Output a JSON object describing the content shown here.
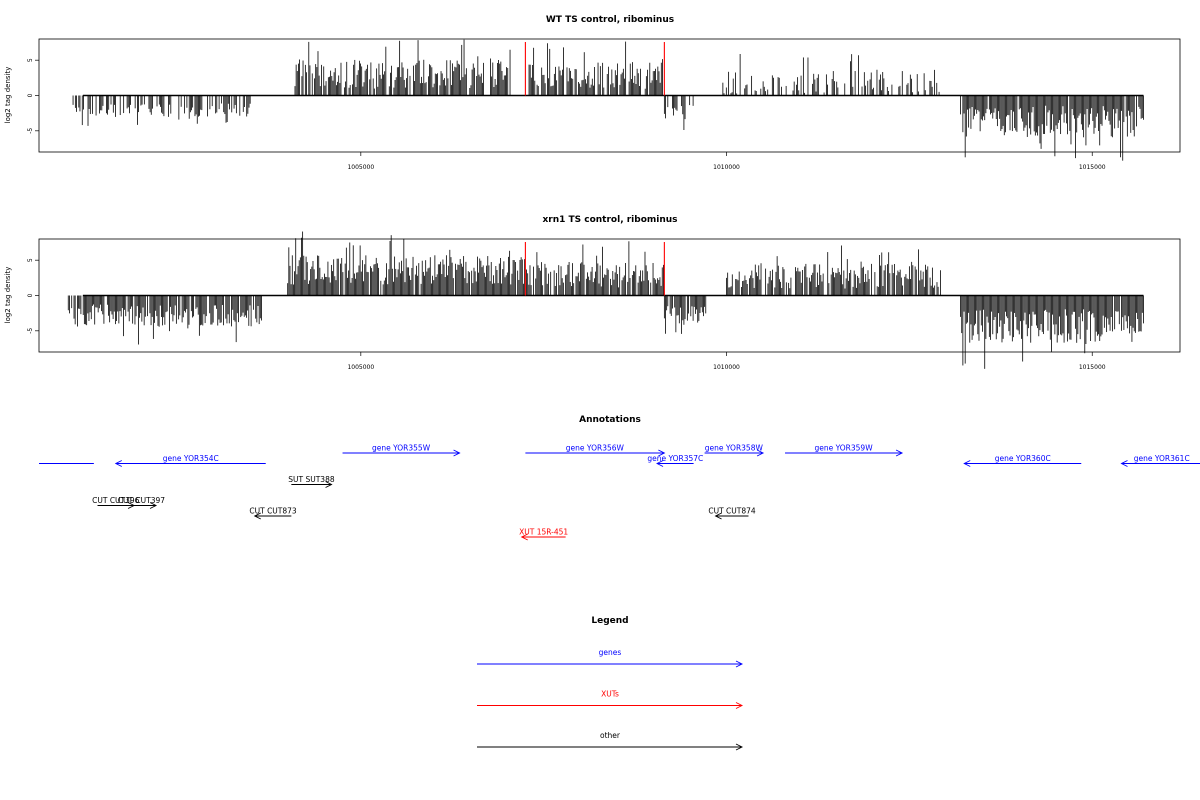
{
  "chart_data": [
    {
      "type": "bar",
      "title": "WT TS control, ribominus",
      "ylabel": "log2 tag density",
      "xlabel": "",
      "xlim": [
        1000600,
        1016200
      ],
      "ylim": [
        -8,
        8
      ],
      "x_ticks": [
        1005000,
        1010000,
        1015000
      ],
      "x_tick_labels": [
        "1005000",
        "1010000",
        "1015000"
      ],
      "y_ticks": [
        -5,
        0,
        5
      ],
      "y_tick_labels": [
        "-5",
        "0",
        "5"
      ],
      "baseline": {
        "from": 1001200,
        "to": 1015700,
        "value": 0
      },
      "markers": [
        1007250,
        1009150
      ],
      "marker_color": "#ff0000",
      "segments": [
        {
          "from": 1001050,
          "to": 1003500,
          "sign": -1,
          "mean": 1.8,
          "amp": 1.2,
          "density": 0.55,
          "seed": 11
        },
        {
          "from": 1004100,
          "to": 1007050,
          "sign": 1,
          "mean": 2.4,
          "amp": 2.6,
          "density": 0.85,
          "seed": 12
        },
        {
          "from": 1007300,
          "to": 1009150,
          "sign": 1,
          "mean": 2.3,
          "amp": 2.4,
          "density": 0.8,
          "seed": 13
        },
        {
          "from": 1009150,
          "to": 1009550,
          "sign": -1,
          "mean": 1.8,
          "amp": 1.5,
          "density": 0.6,
          "seed": 14
        },
        {
          "from": 1009950,
          "to": 1012950,
          "sign": 1,
          "mean": 1.4,
          "amp": 2.0,
          "density": 0.5,
          "seed": 15
        },
        {
          "from": 1013200,
          "to": 1015700,
          "sign": -1,
          "mean": 3.0,
          "amp": 2.8,
          "density": 0.95,
          "seed": 16
        }
      ]
    },
    {
      "type": "bar",
      "title": "xrn1 TS control, ribominus",
      "ylabel": "log2 tag density",
      "xlabel": "",
      "xlim": [
        1000600,
        1016200
      ],
      "ylim": [
        -8,
        8
      ],
      "x_ticks": [
        1005000,
        1010000,
        1015000
      ],
      "x_tick_labels": [
        "1005000",
        "1010000",
        "1015000"
      ],
      "y_ticks": [
        -5,
        0,
        5
      ],
      "y_tick_labels": [
        "-5",
        "0",
        "5"
      ],
      "baseline": {
        "from": 1001200,
        "to": 1015700,
        "value": 0
      },
      "markers": [
        1007250,
        1009150
      ],
      "marker_color": "#ff0000",
      "segments": [
        {
          "from": 1001000,
          "to": 1003650,
          "sign": -1,
          "mean": 2.4,
          "amp": 2.0,
          "density": 0.9,
          "seed": 21
        },
        {
          "from": 1004000,
          "to": 1007250,
          "sign": 1,
          "mean": 3.0,
          "amp": 2.6,
          "density": 0.95,
          "seed": 22
        },
        {
          "from": 1007250,
          "to": 1009150,
          "sign": 1,
          "mean": 2.4,
          "amp": 2.4,
          "density": 0.85,
          "seed": 23
        },
        {
          "from": 1009150,
          "to": 1009750,
          "sign": -1,
          "mean": 2.4,
          "amp": 1.8,
          "density": 0.85,
          "seed": 24
        },
        {
          "from": 1010000,
          "to": 1012950,
          "sign": 1,
          "mean": 2.2,
          "amp": 2.2,
          "density": 0.85,
          "seed": 25
        },
        {
          "from": 1013200,
          "to": 1015700,
          "sign": -1,
          "mean": 3.6,
          "amp": 3.0,
          "density": 0.98,
          "seed": 26
        }
      ]
    }
  ],
  "annotations": {
    "title": "Annotations",
    "items": [
      {
        "label": "",
        "from": 1000600,
        "to": 1001350,
        "dir": "none",
        "color": "#0000ff",
        "row": 1
      },
      {
        "label": "gene YOR354C",
        "from": 1001650,
        "to": 1003700,
        "dir": "left",
        "color": "#0000ff",
        "row": 1
      },
      {
        "label": "gene YOR355W",
        "from": 1004750,
        "to": 1006350,
        "dir": "right",
        "color": "#0000ff",
        "row": 0
      },
      {
        "label": "gene YOR356W",
        "from": 1007250,
        "to": 1009150,
        "dir": "right",
        "color": "#0000ff",
        "row": 0
      },
      {
        "label": "gene YOR357C",
        "from": 1009050,
        "to": 1009550,
        "dir": "left",
        "color": "#0000ff",
        "row": 1
      },
      {
        "label": "gene YOR358W",
        "from": 1009700,
        "to": 1010500,
        "dir": "right",
        "color": "#0000ff",
        "row": 0
      },
      {
        "label": "gene YOR359W",
        "from": 1010800,
        "to": 1012400,
        "dir": "right",
        "color": "#0000ff",
        "row": 0
      },
      {
        "label": "gene YOR360C",
        "from": 1013250,
        "to": 1014850,
        "dir": "left",
        "color": "#0000ff",
        "row": 1
      },
      {
        "label": "gene YOR361C",
        "from": 1015400,
        "to": 1016500,
        "dir": "left",
        "color": "#0000ff",
        "row": 1
      },
      {
        "label": "SUT SUT388",
        "from": 1004050,
        "to": 1004600,
        "dir": "right",
        "color": "#000000",
        "row": 3
      },
      {
        "label": "CUT CUT396",
        "from": 1001400,
        "to": 1001900,
        "dir": "right",
        "color": "#000000",
        "row": 5
      },
      {
        "label": "CUT CUT397",
        "from": 1001800,
        "to": 1002200,
        "dir": "right",
        "color": "#000000",
        "row": 5
      },
      {
        "label": "CUT CUT873",
        "from": 1003550,
        "to": 1004050,
        "dir": "left",
        "color": "#000000",
        "row": 6
      },
      {
        "label": "CUT CUT874",
        "from": 1009850,
        "to": 1010300,
        "dir": "left",
        "color": "#000000",
        "row": 6
      },
      {
        "label": "XUT 15R-451",
        "from": 1007200,
        "to": 1007800,
        "dir": "left",
        "color": "#ff0000",
        "row": 8
      }
    ]
  },
  "legend": {
    "title": "Legend",
    "items": [
      {
        "label": "genes",
        "color": "#0000ff"
      },
      {
        "label": "XUTs",
        "color": "#ff0000"
      },
      {
        "label": "other",
        "color": "#000000"
      }
    ]
  }
}
